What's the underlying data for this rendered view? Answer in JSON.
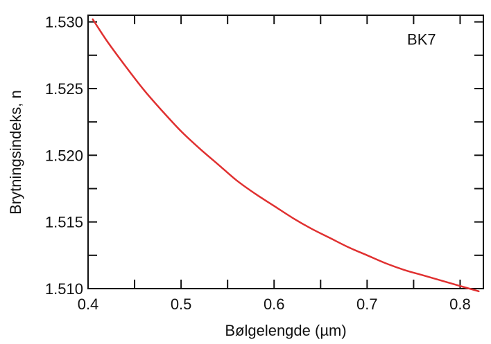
{
  "chart_data": {
    "type": "line",
    "xlabel": "Bølgelengde (µm)",
    "ylabel": "Brytningsindeks, n",
    "xlim": [
      0.4,
      0.825
    ],
    "ylim": [
      1.51,
      1.5305
    ],
    "x_ticks": [
      0.4,
      0.5,
      0.6,
      0.7,
      0.8
    ],
    "x_tick_labels": [
      "0.4",
      "0.5",
      "0.6",
      "0.7",
      "0.8"
    ],
    "y_ticks": [
      1.51,
      1.515,
      1.52,
      1.525,
      1.53
    ],
    "y_tick_labels": [
      "1.510",
      "1.515",
      "1.520",
      "1.525",
      "1.530"
    ],
    "x_minor_ticks": [
      0.45,
      0.55,
      0.65,
      0.75
    ],
    "y_minor_ticks": [
      1.5125,
      1.5175,
      1.5225,
      1.5275
    ],
    "grid": false,
    "annotations": [
      {
        "text": "BK7",
        "x": 0.743,
        "y": 1.5283
      }
    ],
    "series": [
      {
        "color": "#e03030",
        "x": [
          0.405,
          0.42,
          0.44,
          0.46,
          0.48,
          0.5,
          0.52,
          0.54,
          0.56,
          0.58,
          0.6,
          0.62,
          0.64,
          0.66,
          0.68,
          0.7,
          0.72,
          0.74,
          0.76,
          0.78,
          0.8,
          0.82
        ],
        "y": [
          1.5302,
          1.5286,
          1.5267,
          1.5249,
          1.5233,
          1.5218,
          1.5205,
          1.5193,
          1.5181,
          1.5171,
          1.5162,
          1.5153,
          1.5145,
          1.5138,
          1.5131,
          1.5125,
          1.5119,
          1.5114,
          1.511,
          1.5106,
          1.5102,
          1.5098
        ]
      }
    ]
  }
}
